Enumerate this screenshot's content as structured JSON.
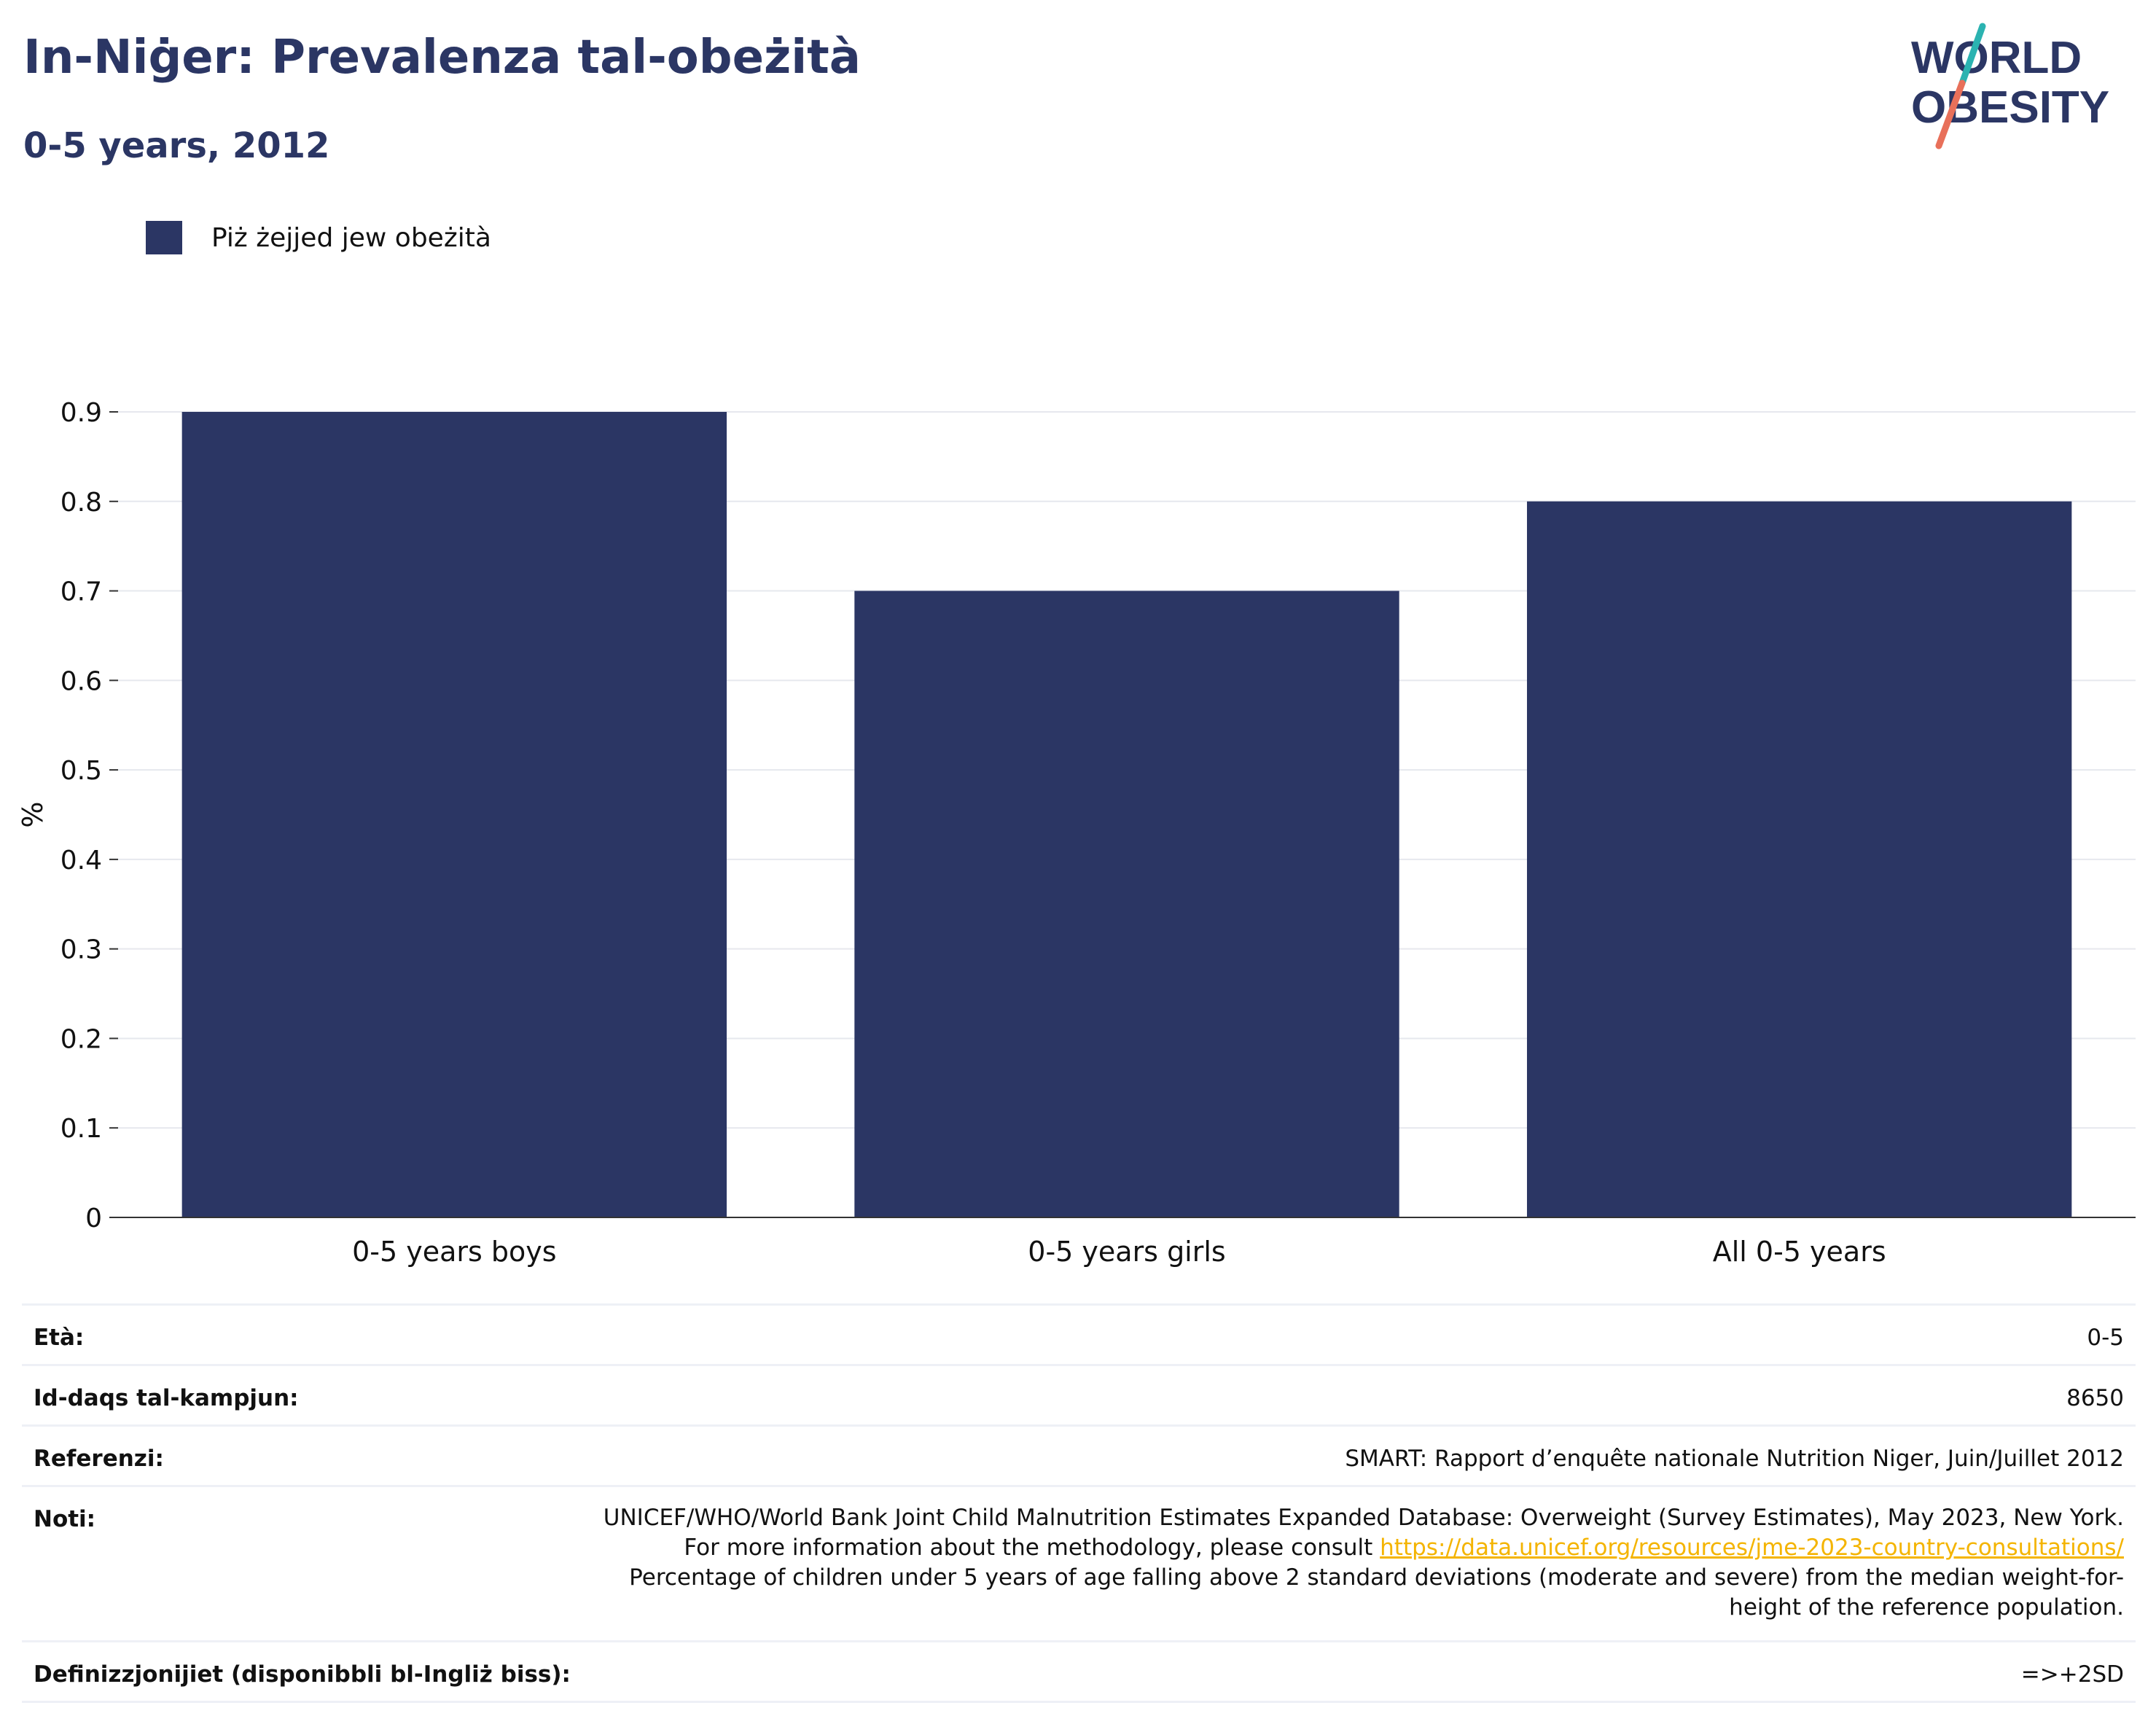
{
  "title": "In-Niġer: Prevalenza tal-obeżità",
  "subtitle": "0-5 years, 2012",
  "logo": {
    "line1": "WORLD",
    "line2": "OBESITY"
  },
  "legend": {
    "label": "Piż żejjed jew obeżità"
  },
  "colors": {
    "bar": "#2b3664",
    "title": "#2b3664",
    "link": "#f4b400",
    "grid": "#e6e8ee",
    "logo_teal": "#2bb3b1",
    "logo_coral": "#e8705a"
  },
  "chart_data": {
    "type": "bar",
    "categories": [
      "0-5 years boys",
      "0-5 years girls",
      "All 0-5 years"
    ],
    "series": [
      {
        "name": "Piż żejjed jew obeżità",
        "values": [
          0.9,
          0.7,
          0.8
        ]
      }
    ],
    "ylabel": "%",
    "xlabel": "",
    "ylim": [
      0,
      0.9
    ],
    "yticks": [
      0,
      0.1,
      0.2,
      0.3,
      0.4,
      0.5,
      0.6,
      0.7,
      0.8,
      0.9
    ],
    "ytick_labels": [
      "0",
      "0.1",
      "0.2",
      "0.3",
      "0.4",
      "0.5",
      "0.6",
      "0.7",
      "0.8",
      "0.9"
    ],
    "grid": true,
    "legend_position": "top-left"
  },
  "table": {
    "age": {
      "label": "Età:",
      "value": "0-5"
    },
    "sample": {
      "label": "Id-daqs tal-kampjun:",
      "value": "8650"
    },
    "references": {
      "label": "Referenzi:",
      "value": "SMART: Rapport d’enquête nationale Nutrition Niger, Juin/Juillet 2012"
    },
    "notes": {
      "label": "Noti:",
      "text_before": "UNICEF/WHO/World Bank Joint Child Malnutrition Estimates Expanded Database: Overweight (Survey Estimates), May 2023, New York. For more information about the methodology, please consult ",
      "link": "https://data.unicef.org/resources/jme-2023-country-consultations/",
      "text_after": " Percentage of children under 5 years of age falling above 2 standard deviations (moderate and severe) from the median weight-for-height of the reference population."
    },
    "definitions": {
      "label": "Definizzjonijiet (disponibbli bl-Ingliż biss):",
      "value": "=>+2SD"
    }
  }
}
